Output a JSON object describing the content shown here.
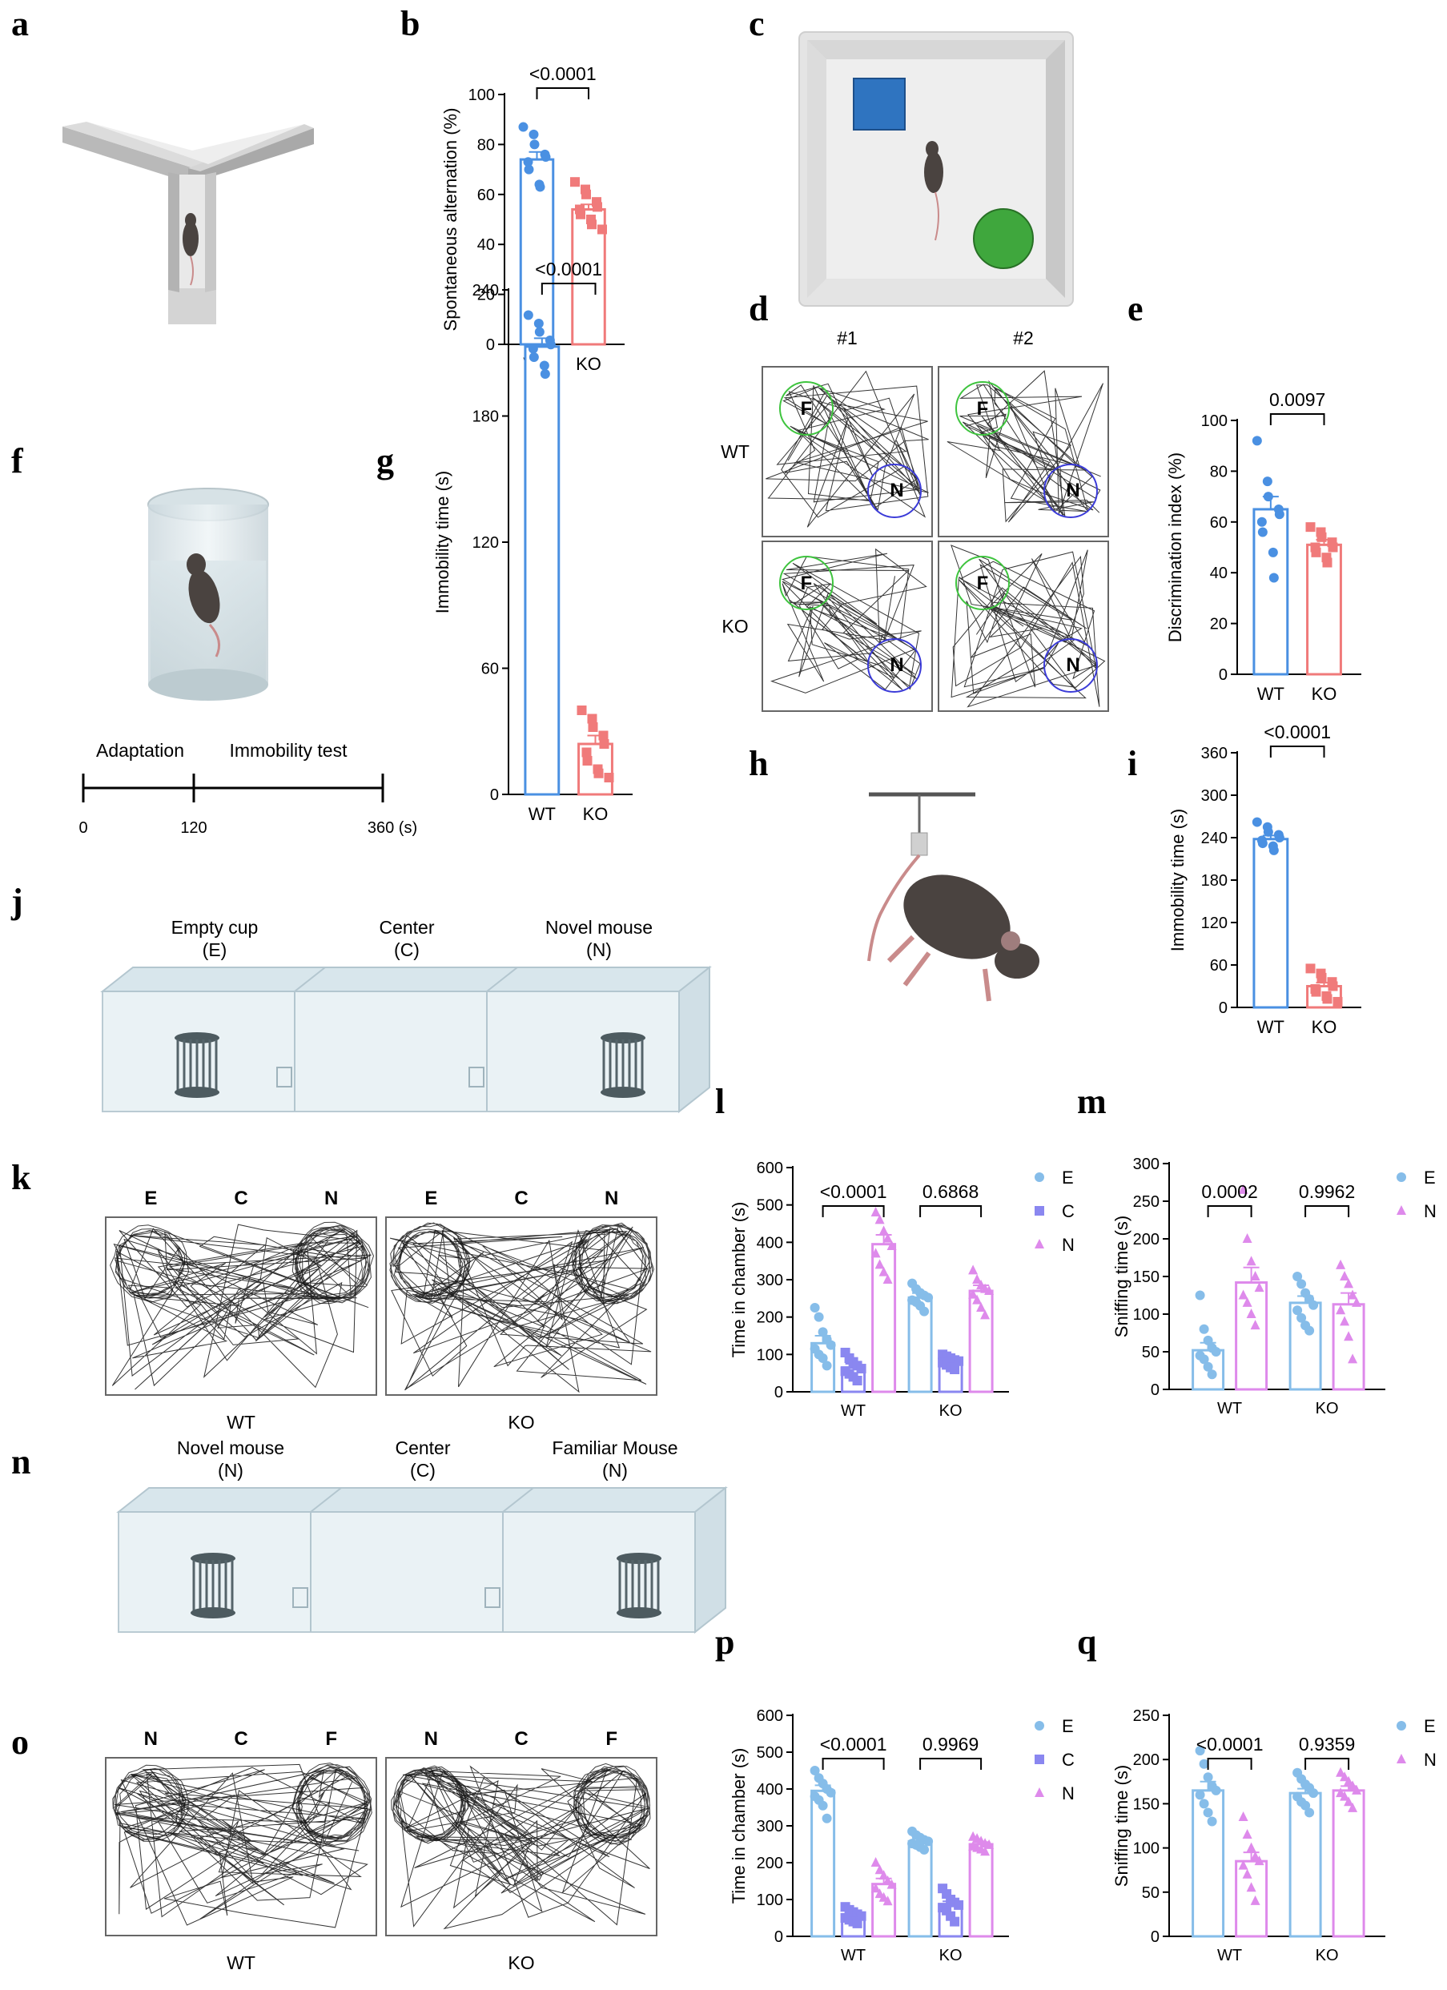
{
  "panels": {
    "a": "a",
    "b": "b",
    "c": "c",
    "d": "d",
    "e": "e",
    "f": "f",
    "g": "g",
    "h": "h",
    "i": "i",
    "j": "j",
    "k": "k",
    "l": "l",
    "m": "m",
    "n": "n",
    "o": "o",
    "p": "p",
    "q": "q"
  },
  "colors": {
    "wt": "#4a90e2",
    "ko": "#f07a7a",
    "E": "#86bde9",
    "C": "#8a87f0",
    "N": "#de8aeb"
  },
  "panel_f": {
    "adaptation": "Adaptation",
    "immobility": "Immobility test",
    "ticks": [
      "0",
      "120",
      "360 (s)"
    ]
  },
  "panel_d": {
    "cols": [
      "#1",
      "#2"
    ],
    "rows": [
      "WT",
      "KO"
    ],
    "labels": [
      "F",
      "N"
    ]
  },
  "panel_j": {
    "labels": [
      {
        "line1": "Empty cup",
        "line2": "(E)"
      },
      {
        "line1": "Center",
        "line2": "(C)"
      },
      {
        "line1": "Novel mouse",
        "line2": "(N)"
      }
    ]
  },
  "panel_n": {
    "labels": [
      {
        "line1": "Novel mouse",
        "line2": "(N)"
      },
      {
        "line1": "Center",
        "line2": "(C)"
      },
      {
        "line1": "Familiar Mouse",
        "line2": "(N)"
      }
    ]
  },
  "panel_k": {
    "top": [
      "E",
      "C",
      "N",
      "E",
      "C",
      "N"
    ],
    "bottom": [
      "WT",
      "KO"
    ]
  },
  "panel_o": {
    "top": [
      "N",
      "C",
      "F",
      "N",
      "C",
      "F"
    ],
    "bottom": [
      "WT",
      "KO"
    ]
  },
  "chart_data": [
    {
      "id": "b",
      "type": "bar",
      "ylabel": "Spontaneous alternation (%)",
      "categories": [
        "WT",
        "KO"
      ],
      "ylim": [
        0,
        100
      ],
      "yticks": [
        0,
        20,
        40,
        60,
        80,
        100
      ],
      "values": [
        74,
        54
      ],
      "sem": [
        3,
        2
      ],
      "significance": "<0.0001",
      "points": [
        [
          87,
          84,
          80,
          76,
          75,
          73,
          70,
          64,
          63
        ],
        [
          65,
          62,
          60,
          57,
          55,
          54,
          52,
          50,
          48,
          46
        ]
      ]
    },
    {
      "id": "e",
      "type": "bar",
      "ylabel": "Discrimination index (%)",
      "categories": [
        "WT",
        "KO"
      ],
      "ylim": [
        0,
        100
      ],
      "yticks": [
        0,
        20,
        40,
        60,
        80,
        100
      ],
      "values": [
        65,
        51
      ],
      "sem": [
        5,
        2
      ],
      "significance": "0.0097",
      "points": [
        [
          92,
          76,
          70,
          65,
          63,
          60,
          56,
          48,
          38
        ],
        [
          58,
          56,
          54,
          52,
          50,
          50,
          48,
          46,
          44
        ]
      ]
    },
    {
      "id": "g",
      "type": "bar",
      "ylabel": "Immobility time (s)",
      "categories": [
        "WT",
        "KO"
      ],
      "ylim": [
        0,
        240
      ],
      "yticks": [
        0,
        60,
        120,
        180,
        240
      ],
      "values": [
        213,
        24
      ],
      "sem": [
        4,
        4
      ],
      "significance": "<0.0001",
      "points": [
        [
          228,
          224,
          220,
          216,
          214,
          212,
          208,
          204,
          200
        ],
        [
          40,
          36,
          32,
          28,
          24,
          20,
          16,
          12,
          10,
          8
        ]
      ]
    },
    {
      "id": "i",
      "type": "bar",
      "ylabel": "Immobility time (s)",
      "categories": [
        "WT",
        "KO"
      ],
      "ylim": [
        0,
        360
      ],
      "yticks": [
        0,
        60,
        120,
        180,
        240,
        300,
        360
      ],
      "values": [
        238,
        30
      ],
      "sem": [
        5,
        5
      ],
      "significance": "<0.0001",
      "points": [
        [
          262,
          255,
          248,
          244,
          240,
          236,
          232,
          228,
          222
        ],
        [
          55,
          48,
          42,
          36,
          30,
          26,
          22,
          16,
          12,
          8
        ]
      ]
    },
    {
      "id": "l",
      "type": "bar",
      "ylabel": "Time in chamber (s)",
      "groups": [
        "WT",
        "KO"
      ],
      "series": [
        {
          "name": "E",
          "values": [
            130,
            252
          ],
          "sem": [
            20,
            12
          ]
        },
        {
          "name": "C",
          "values": [
            65,
            82
          ],
          "sem": [
            10,
            6
          ]
        },
        {
          "name": "N",
          "values": [
            395,
            270
          ],
          "sem": [
            25,
            15
          ]
        }
      ],
      "ylim": [
        0,
        600
      ],
      "yticks": [
        0,
        100,
        200,
        300,
        400,
        500,
        600
      ],
      "significance": [
        "<0.0001",
        "0.6868"
      ],
      "points": [
        [
          [
            225,
            200,
            160,
            140,
            125,
            115,
            100,
            90,
            70
          ],
          [
            290,
            275,
            265,
            258,
            252,
            245,
            240,
            230,
            215
          ]
        ],
        [
          [
            105,
            90,
            80,
            70,
            62,
            55,
            48,
            40,
            30
          ],
          [
            100,
            95,
            90,
            85,
            82,
            78,
            72,
            65,
            60
          ]
        ],
        [
          [
            480,
            460,
            430,
            410,
            390,
            370,
            340,
            320,
            300
          ],
          [
            325,
            300,
            285,
            275,
            270,
            260,
            245,
            225,
            205
          ]
        ]
      ],
      "legend": [
        "E",
        "C",
        "N"
      ]
    },
    {
      "id": "m",
      "type": "bar",
      "ylabel": "Sniffing time (s)",
      "groups": [
        "WT",
        "KO"
      ],
      "series": [
        {
          "name": "E",
          "values": [
            52,
            115
          ],
          "sem": [
            10,
            9
          ]
        },
        {
          "name": "N",
          "values": [
            142,
            113
          ],
          "sem": [
            20,
            15
          ]
        }
      ],
      "ylim": [
        0,
        300
      ],
      "yticks": [
        0,
        50,
        100,
        150,
        200,
        250,
        300
      ],
      "significance": [
        "0.0002",
        "0.9962"
      ],
      "points": [
        [
          [
            125,
            80,
            65,
            55,
            50,
            45,
            40,
            30,
            20
          ],
          [
            150,
            140,
            128,
            120,
            112,
            105,
            95,
            85,
            78
          ]
        ],
        [
          [
            265,
            200,
            170,
            150,
            135,
            125,
            115,
            100,
            85
          ],
          [
            165,
            150,
            140,
            125,
            115,
            105,
            90,
            70,
            40
          ]
        ]
      ],
      "legend": [
        "E",
        "N"
      ]
    },
    {
      "id": "p",
      "type": "bar",
      "ylabel": "Time in chamber (s)",
      "groups": [
        "WT",
        "KO"
      ],
      "series": [
        {
          "name": "E",
          "values": [
            395,
            258
          ],
          "sem": [
            15,
            8
          ]
        },
        {
          "name": "C",
          "values": [
            60,
            85
          ],
          "sem": [
            8,
            10
          ]
        },
        {
          "name": "N",
          "values": [
            142,
            250
          ],
          "sem": [
            15,
            6
          ]
        }
      ],
      "ylim": [
        0,
        600
      ],
      "yticks": [
        0,
        100,
        200,
        300,
        400,
        500,
        600
      ],
      "significance": [
        "<0.0001",
        "0.9969"
      ],
      "points": [
        [
          [
            450,
            430,
            415,
            400,
            390,
            380,
            370,
            355,
            320
          ],
          [
            285,
            275,
            268,
            262,
            258,
            252,
            248,
            242,
            235
          ]
        ],
        [
          [
            80,
            72,
            66,
            60,
            55,
            50,
            45,
            40,
            35
          ],
          [
            130,
            115,
            100,
            92,
            85,
            78,
            70,
            55,
            40
          ]
        ],
        [
          [
            200,
            180,
            165,
            150,
            140,
            130,
            115,
            105,
            95
          ],
          [
            270,
            265,
            258,
            252,
            248,
            244,
            240,
            236,
            230
          ]
        ]
      ],
      "legend": [
        "E",
        "C",
        "N"
      ]
    },
    {
      "id": "q",
      "type": "bar",
      "ylabel": "Sniffing time (s)",
      "groups": [
        "WT",
        "KO"
      ],
      "series": [
        {
          "name": "E",
          "values": [
            165,
            162
          ],
          "sem": [
            10,
            5
          ]
        },
        {
          "name": "N",
          "values": [
            85,
            165
          ],
          "sem": [
            10,
            5
          ]
        }
      ],
      "ylim": [
        0,
        250
      ],
      "yticks": [
        0,
        50,
        100,
        150,
        200,
        250
      ],
      "significance": [
        "<0.0001",
        "0.9359"
      ],
      "points": [
        [
          [
            210,
            195,
            180,
            170,
            165,
            160,
            150,
            140,
            130
          ],
          [
            185,
            178,
            172,
            168,
            162,
            158,
            152,
            148,
            140
          ]
        ],
        [
          [
            135,
            115,
            100,
            90,
            85,
            80,
            70,
            55,
            40
          ],
          [
            185,
            180,
            175,
            170,
            165,
            162,
            158,
            152,
            145
          ]
        ]
      ],
      "legend": [
        "E",
        "N"
      ]
    }
  ]
}
